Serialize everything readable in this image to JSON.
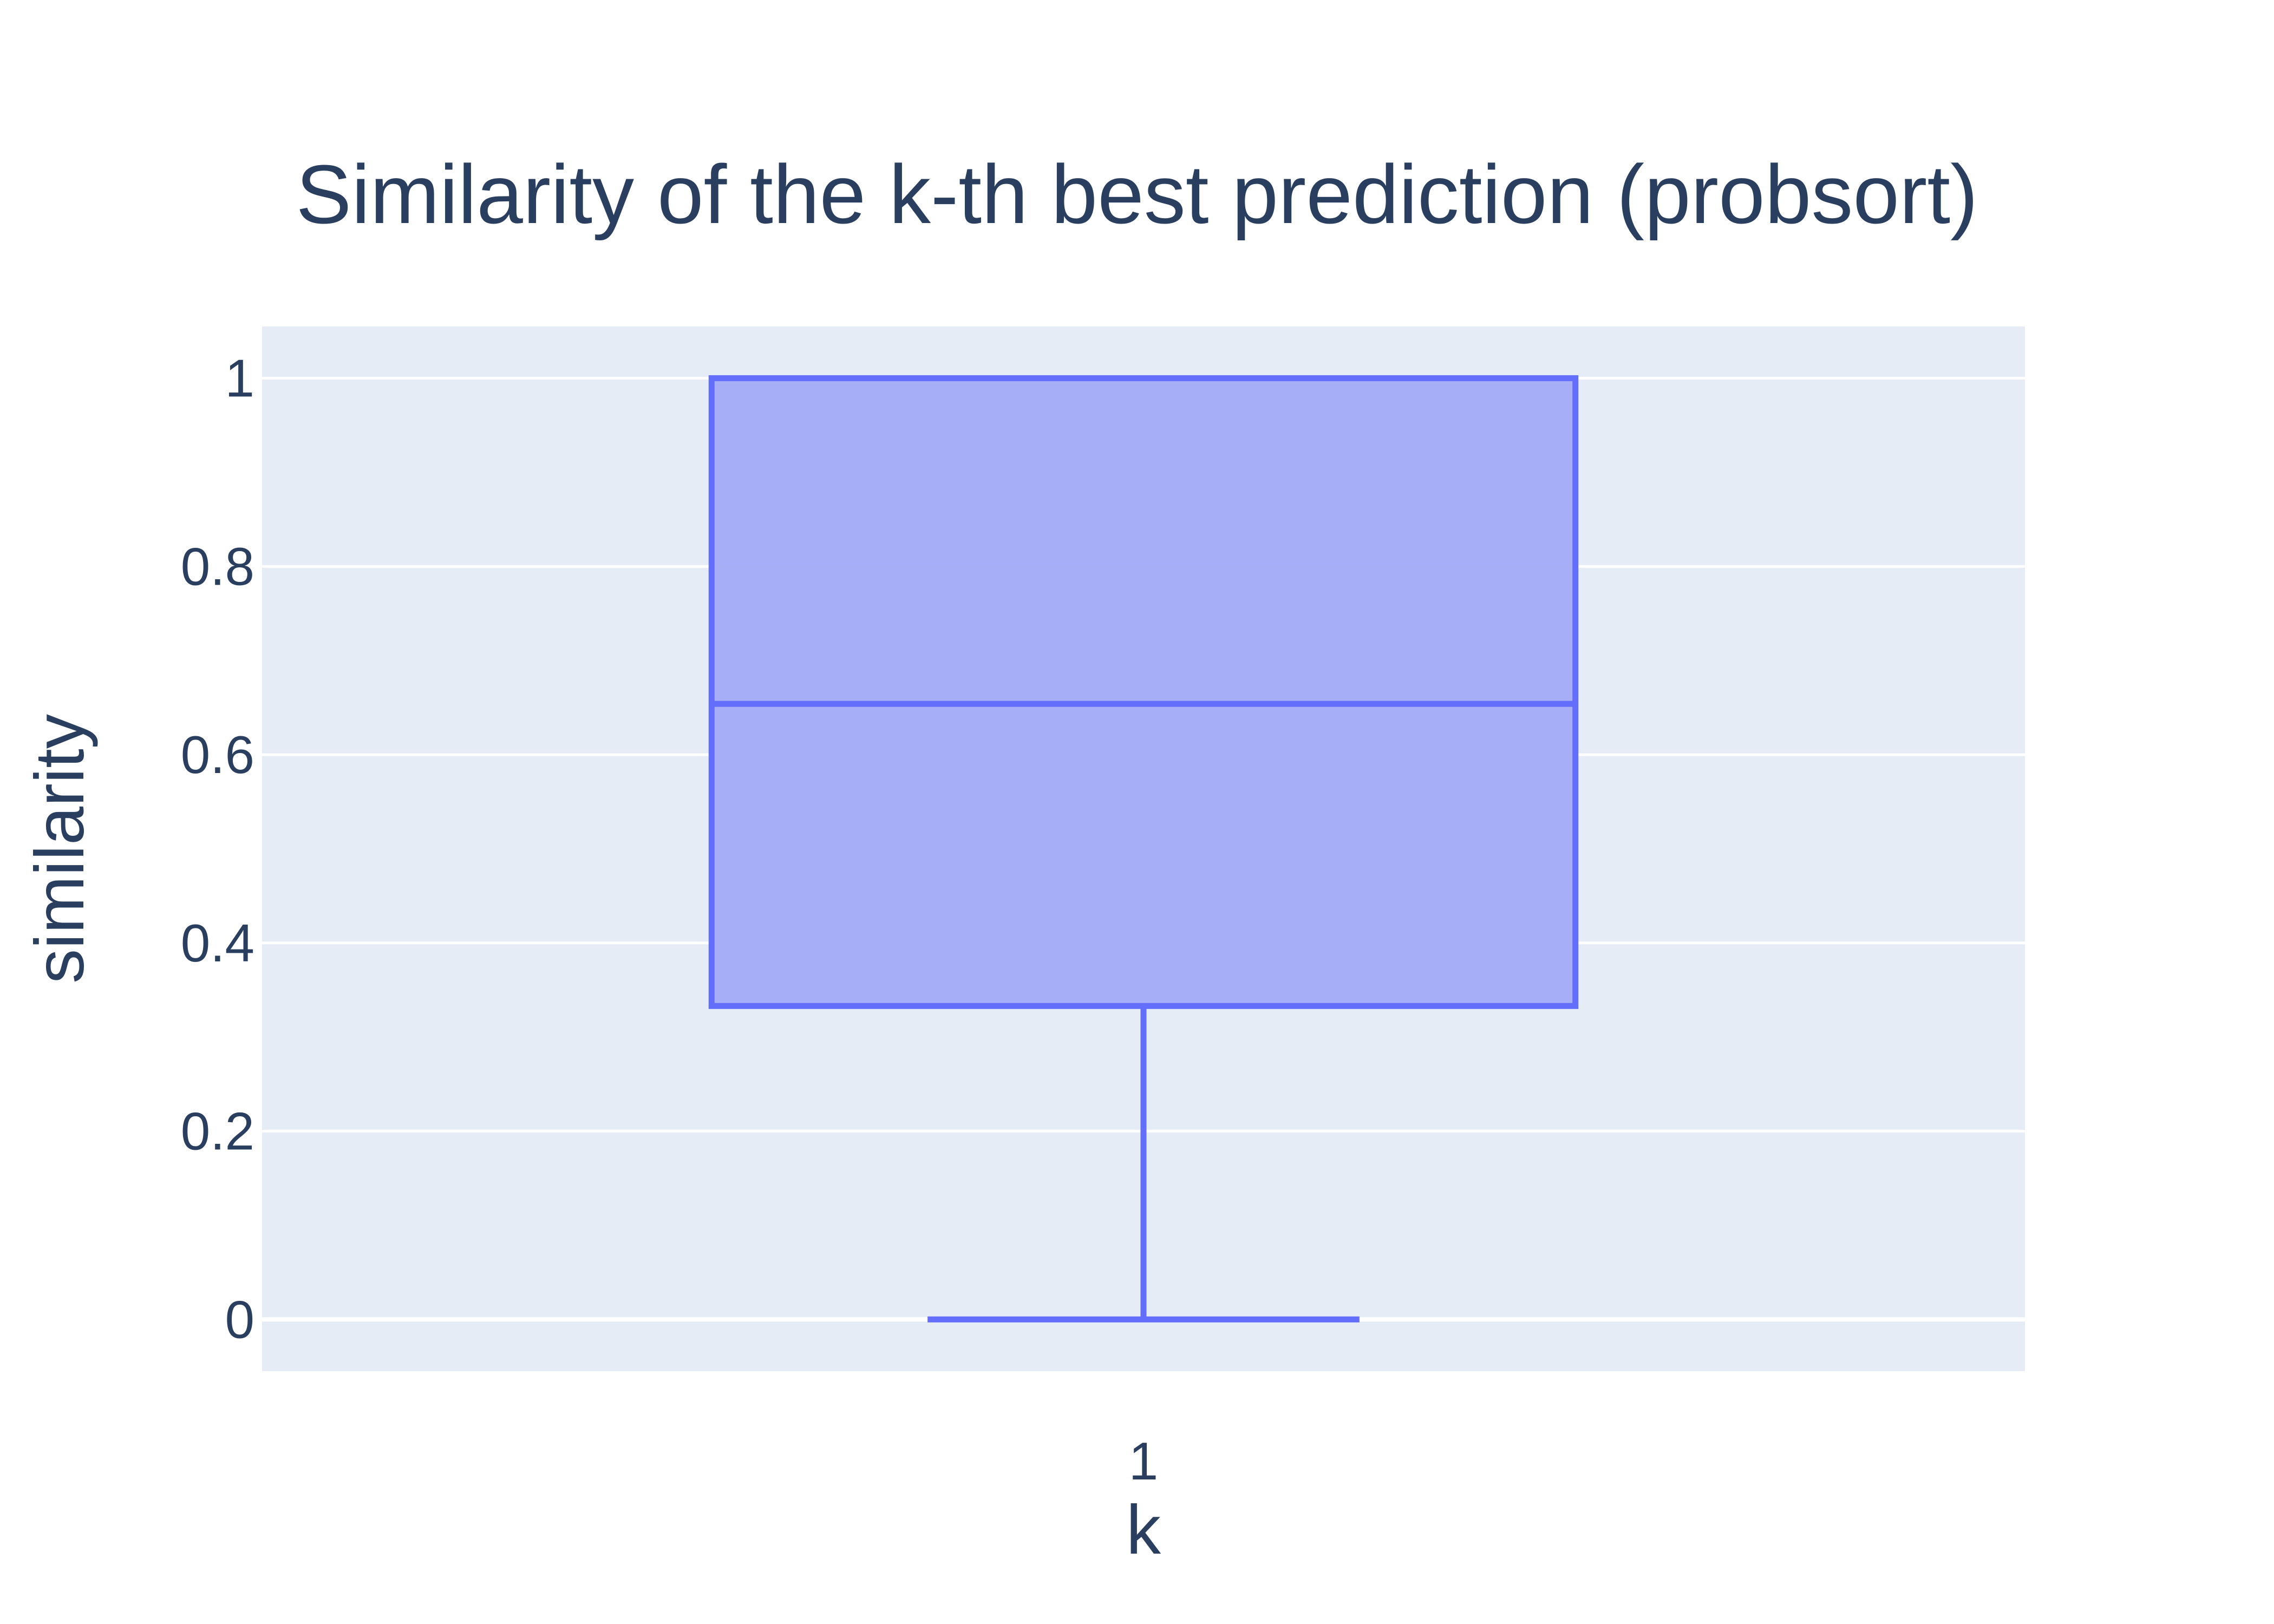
{
  "chart_data": {
    "type": "box",
    "title": "Similarity of the k-th best prediction (probsort)",
    "xlabel": "k",
    "ylabel": "similarity",
    "categories": [
      "1"
    ],
    "series": [
      {
        "category": "1",
        "min": 0,
        "q1": 0.333,
        "median": 0.654,
        "q3": 1,
        "max": 1
      }
    ],
    "ylim": [
      -0.055,
      1.055
    ],
    "yticks": [
      0,
      0.2,
      0.4,
      0.6,
      0.8,
      1
    ],
    "ytick_labels": [
      "0",
      "0.2",
      "0.4",
      "0.6",
      "0.8",
      "1"
    ],
    "grid": true,
    "legend": "none",
    "colors": {
      "plot_background": "#e5ecf6",
      "grid": "#ffffff",
      "box_line": "#636efa",
      "box_fill": "#a1abf5",
      "text": "#2a3f5f"
    }
  }
}
